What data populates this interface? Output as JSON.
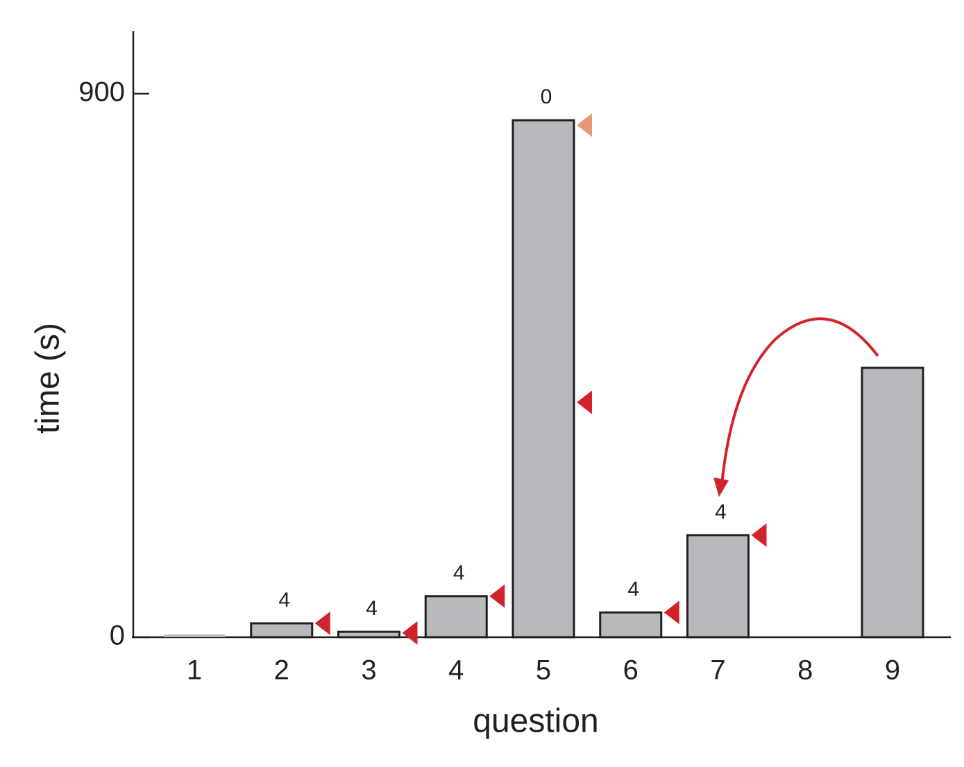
{
  "chart_data": {
    "type": "bar",
    "x_label": "question",
    "y_label": "time (s)",
    "categories": [
      "1",
      "2",
      "3",
      "4",
      "5",
      "6",
      "7",
      "8",
      "9"
    ],
    "values": [
      2,
      23,
      9,
      68,
      856,
      41,
      169,
      null,
      446
    ],
    "bar_labels": [
      null,
      "4",
      "4",
      "4",
      "0",
      "4",
      "4",
      null,
      null
    ],
    "color": "#b8b9bc",
    "markers": [
      null,
      23,
      7,
      68,
      389,
      41,
      169,
      null,
      null
    ],
    "marker_color": "#d2232a",
    "upper_markers": [
      null,
      null,
      null,
      null,
      848,
      null,
      null,
      null,
      null
    ],
    "upper_marker_color": "#e8957a",
    "ylim": [
      0,
      1000
    ],
    "yticks": [
      0,
      900
    ]
  }
}
